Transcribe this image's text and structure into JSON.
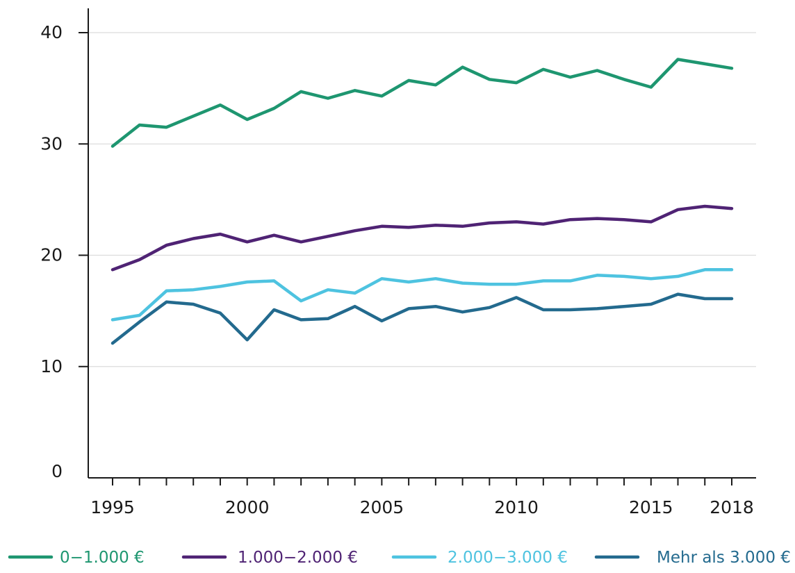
{
  "chart_data": {
    "type": "line",
    "title": "",
    "xlabel": "",
    "ylabel": "",
    "x": [
      1995,
      1996,
      1997,
      1998,
      1999,
      2000,
      2001,
      2002,
      2003,
      2004,
      2005,
      2006,
      2007,
      2008,
      2009,
      2010,
      2011,
      2012,
      2013,
      2014,
      2015,
      2016,
      2017,
      2018
    ],
    "xlim": [
      1995,
      2018
    ],
    "ylim": [
      0,
      40
    ],
    "x_tick_labels": [
      "1995",
      "2000",
      "2005",
      "2010",
      "2015",
      "2018"
    ],
    "y_tick_labels": [
      "0",
      "10",
      "20",
      "30",
      "40"
    ],
    "grid": "horizontal",
    "legend_position": "bottom",
    "series": [
      {
        "name": "0−1.000 €",
        "color": "#1e9670",
        "values": [
          29.8,
          31.7,
          31.5,
          32.5,
          33.5,
          32.2,
          33.2,
          34.7,
          34.1,
          34.8,
          34.3,
          35.7,
          35.3,
          36.9,
          35.8,
          35.5,
          36.7,
          36.0,
          36.6,
          35.8,
          35.1,
          37.6,
          37.2,
          36.8
        ]
      },
      {
        "name": "1.000−2.000 €",
        "color": "#4f2374",
        "values": [
          18.7,
          19.6,
          20.9,
          21.5,
          21.9,
          21.2,
          21.8,
          21.2,
          21.7,
          22.2,
          22.6,
          22.5,
          22.7,
          22.6,
          22.9,
          23.0,
          22.8,
          23.2,
          23.3,
          23.2,
          23.0,
          24.1,
          24.4,
          24.2
        ]
      },
      {
        "name": "2.000−3.000 €",
        "color": "#4ec3e0",
        "values": [
          14.2,
          14.6,
          16.8,
          16.9,
          17.2,
          17.6,
          17.7,
          15.9,
          16.9,
          16.6,
          17.9,
          17.6,
          17.9,
          17.5,
          17.4,
          17.4,
          17.7,
          17.7,
          18.2,
          18.1,
          17.9,
          18.1,
          18.7,
          18.7
        ]
      },
      {
        "name": "Mehr als 3.000 €",
        "color": "#236a8e",
        "values": [
          12.1,
          14.0,
          15.8,
          15.6,
          14.8,
          12.4,
          15.1,
          14.2,
          14.3,
          15.4,
          14.1,
          15.2,
          15.4,
          14.9,
          15.3,
          16.2,
          15.1,
          15.1,
          15.2,
          15.4,
          15.6,
          16.5,
          16.1,
          16.1
        ]
      }
    ]
  }
}
